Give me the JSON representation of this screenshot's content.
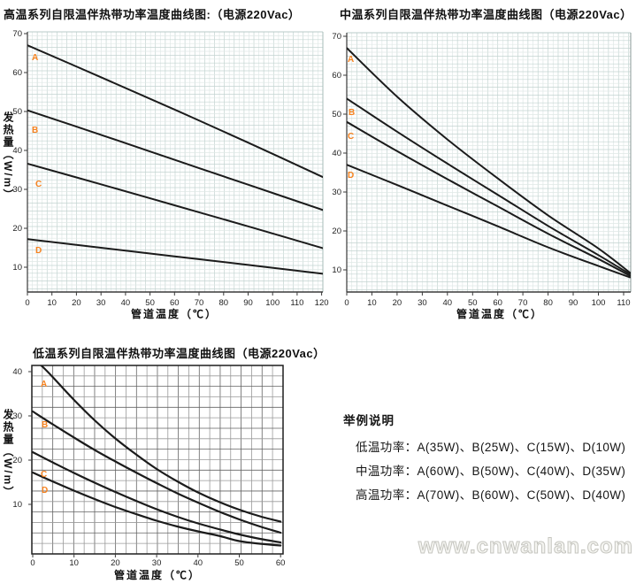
{
  "colors": {
    "curve": "#1b1b1b",
    "series_label": "#f6821f",
    "grid_fine_dark": "#c3d4d1",
    "grid_fine_light": "#dfe8e6",
    "grid_coarse_dark": "#636363",
    "grid_coarse_light": "#9a9a9a",
    "axis": "#3a3a3a",
    "border_coarse": "#1e1e1e"
  },
  "watermark": "www.cnwanlan.com",
  "legend": {
    "heading": "举例说明",
    "lines": [
      "低温功率：A(35W)、B(25W)、C(15W)、D(10W)",
      "中温功率：A(60W)、B(50W)、C(40W)、D(35W)",
      "高温功率：A(70W)、B(60W)、C(50W)、D(40W)"
    ]
  },
  "chart_data": [
    {
      "id": "high-temp",
      "type": "line",
      "title": "高温系列自限温伴热带功率温度曲线图:（电源220Vac）",
      "xlabel": "管道温度（℃）",
      "ylabel": "发热量（W/m）",
      "x_ticks": [
        0,
        10,
        20,
        30,
        40,
        50,
        60,
        70,
        80,
        90,
        100,
        110,
        120
      ],
      "y_ticks": [
        70,
        60,
        50,
        40,
        30,
        20,
        10
      ],
      "xlim": [
        0,
        121
      ],
      "ylim": [
        3.6,
        70.5
      ],
      "grid": "fine",
      "legend_position": "on-curve",
      "series": [
        {
          "name": "A",
          "points": [
            [
              0,
              67
            ],
            [
              30,
              58.8
            ],
            [
              60,
              50.5
            ],
            [
              90,
              42
            ],
            [
              121,
              33
            ]
          ]
        },
        {
          "name": "B",
          "points": [
            [
              0,
              50.3
            ],
            [
              30,
              44
            ],
            [
              60,
              37.6
            ],
            [
              90,
              31.2
            ],
            [
              121,
              24.6
            ]
          ]
        },
        {
          "name": "C",
          "points": [
            [
              0,
              36.6
            ],
            [
              30,
              31.3
            ],
            [
              60,
              25.9
            ],
            [
              90,
              20.5
            ],
            [
              121,
              14.8
            ]
          ]
        },
        {
          "name": "D",
          "points": [
            [
              0,
              17.2
            ],
            [
              30,
              15
            ],
            [
              60,
              12.8
            ],
            [
              90,
              10.6
            ],
            [
              121,
              8.3
            ]
          ]
        }
      ]
    },
    {
      "id": "medium-temp",
      "type": "line",
      "title": "中温系列自限温伴热带功率温度曲线图（电源220Vac）",
      "xlabel": "管道温度（℃）",
      "ylabel": "",
      "x_ticks": [
        0,
        10,
        20,
        30,
        40,
        50,
        60,
        70,
        80,
        90,
        100,
        110
      ],
      "y_ticks": [
        70,
        60,
        50,
        40,
        30,
        20,
        10
      ],
      "xlim": [
        0,
        112.8
      ],
      "ylim": [
        4.1,
        70.9
      ],
      "grid": "fine",
      "legend_position": "on-curve",
      "series": [
        {
          "name": "A",
          "points": [
            [
              0,
              67
            ],
            [
              20,
              54.5
            ],
            [
              40,
              43.5
            ],
            [
              60,
              33.5
            ],
            [
              80,
              24
            ],
            [
              100,
              15.5
            ],
            [
              112.5,
              9.3
            ]
          ]
        },
        {
          "name": "B",
          "points": [
            [
              0,
              54
            ],
            [
              20,
              45.5
            ],
            [
              40,
              37.3
            ],
            [
              60,
              29.3
            ],
            [
              80,
              21.3
            ],
            [
              100,
              13.8
            ],
            [
              112.5,
              8.9
            ]
          ]
        },
        {
          "name": "C",
          "points": [
            [
              0,
              48
            ],
            [
              20,
              40.5
            ],
            [
              40,
              33.3
            ],
            [
              60,
              26.3
            ],
            [
              80,
              19.3
            ],
            [
              100,
              12.8
            ],
            [
              112.5,
              8.5
            ]
          ]
        },
        {
          "name": "D",
          "points": [
            [
              0,
              37
            ],
            [
              20,
              31.8
            ],
            [
              40,
              26.5
            ],
            [
              60,
              21.2
            ],
            [
              80,
              15.8
            ],
            [
              100,
              11
            ],
            [
              112.5,
              8.1
            ]
          ]
        }
      ]
    },
    {
      "id": "low-temp",
      "type": "line",
      "title": "低温系列自限温伴热带功率温度曲线图（电源220Vac）",
      "xlabel": "管道温度（℃）",
      "ylabel": "发热量（W/m）",
      "x_ticks": [
        0,
        10,
        20,
        30,
        40,
        50,
        60
      ],
      "y_ticks": [
        40,
        30,
        20,
        10
      ],
      "xlim": [
        0,
        60.6
      ],
      "ylim": [
        -1.2,
        41.4
      ],
      "grid": "coarse",
      "legend_position": "on-curve",
      "series": [
        {
          "name": "A",
          "points": [
            [
              0,
              43
            ],
            [
              2.5,
              41
            ],
            [
              5,
              38.6
            ],
            [
              10,
              33.6
            ],
            [
              15,
              29
            ],
            [
              20,
              24.9
            ],
            [
              25,
              21.3
            ],
            [
              30,
              18
            ],
            [
              35,
              15.2
            ],
            [
              40,
              12.7
            ],
            [
              45,
              10.6
            ],
            [
              50,
              8.8
            ],
            [
              55,
              7.3
            ],
            [
              60,
              6.1
            ]
          ]
        },
        {
          "name": "B",
          "points": [
            [
              0,
              31
            ],
            [
              5,
              28
            ],
            [
              10,
              25.1
            ],
            [
              15,
              22.3
            ],
            [
              20,
              19.7
            ],
            [
              25,
              17.2
            ],
            [
              30,
              14.8
            ],
            [
              35,
              12.5
            ],
            [
              40,
              10.4
            ],
            [
              45,
              8.4
            ],
            [
              50,
              6.6
            ],
            [
              55,
              5
            ],
            [
              60,
              3.6
            ]
          ]
        },
        {
          "name": "C",
          "points": [
            [
              0,
              21.8
            ],
            [
              5,
              19.4
            ],
            [
              10,
              17.1
            ],
            [
              15,
              14.9
            ],
            [
              20,
              12.8
            ],
            [
              25,
              10.8
            ],
            [
              30,
              8.9
            ],
            [
              35,
              7.2
            ],
            [
              40,
              5.7
            ],
            [
              45,
              4.4
            ],
            [
              50,
              3.2
            ],
            [
              55,
              2.2
            ],
            [
              60,
              1.4
            ]
          ]
        },
        {
          "name": "D",
          "points": [
            [
              0,
              17.2
            ],
            [
              5,
              15.1
            ],
            [
              10,
              13.1
            ],
            [
              15,
              11.2
            ],
            [
              20,
              9.4
            ],
            [
              25,
              7.8
            ],
            [
              30,
              6.3
            ],
            [
              35,
              5
            ],
            [
              40,
              3.9
            ],
            [
              45,
              2.9
            ],
            [
              50,
              1.7
            ],
            [
              55,
              1.1
            ],
            [
              60,
              0.7
            ]
          ]
        }
      ]
    }
  ]
}
